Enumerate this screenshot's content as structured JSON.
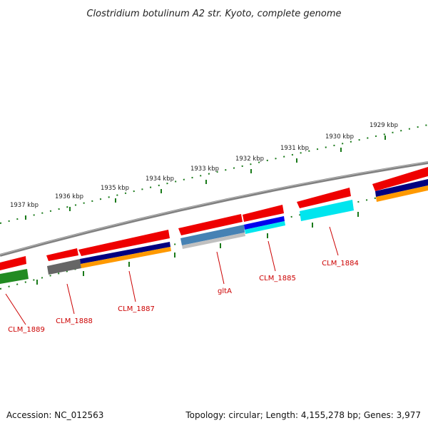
{
  "title": "Clostridium botulinum A2 str. Kyoto, complete genome",
  "footer": {
    "accession": "Accession: NC_012563",
    "topology": "Topology: circular; Length: 4,155,278 bp; Genes: 3,977"
  },
  "ticks": [
    "1937 kbp",
    "1936 kbp",
    "1935 kbp",
    "1934 kbp",
    "1933 kbp",
    "1932 kbp",
    "1931 kbp",
    "1930 kbp",
    "1929 kbp"
  ],
  "genes": [
    "CLM_1889",
    "CLM_1888",
    "CLM_1887",
    "gltA",
    "CLM_1885",
    "CLM_1884"
  ],
  "colors": {
    "gene": "#ee0000",
    "backbone": "#808080",
    "tick": "#1a7a1a",
    "cds_dark": "#000080",
    "cds_orange": "#ff9900",
    "cds_cyan": "#00e5ee",
    "cds_blue": "#0000ee",
    "cds_steel": "#4682b4",
    "cds_gray": "#666666",
    "cds_green": "#228b22",
    "label": "#cc0000"
  }
}
